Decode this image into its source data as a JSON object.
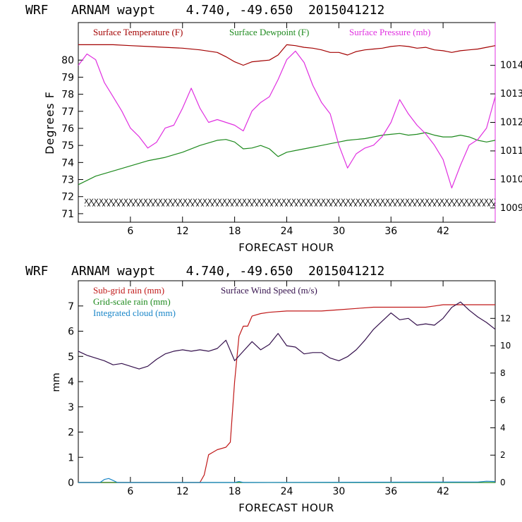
{
  "colors": {
    "temperature": "#a30000",
    "dewpoint": "#1e8a1e",
    "pressure": "#e030e0",
    "subgrid_rain": "#c01818",
    "gridscale_rain": "#1e8a1e",
    "integrated_cloud": "#1a86c8",
    "wind_speed": "#34104c",
    "axis": "#000000"
  },
  "chart_data": [
    {
      "type": "line",
      "title": "WRF   ARNAM waypt    4.740, -49.650  2015041212",
      "xlabel": "FORECAST HOUR",
      "ylabel": "Degrees F",
      "xlim": [
        0,
        48
      ],
      "ylim": [
        70.5,
        82.2
      ],
      "y2lim": [
        1008.5,
        1015.5
      ],
      "grid": false,
      "x_ticks": [
        6,
        12,
        18,
        24,
        30,
        36,
        42
      ],
      "y_ticks": [
        71,
        72,
        73,
        74,
        75,
        76,
        77,
        78,
        79,
        80
      ],
      "y2_ticks": [
        1009,
        1010,
        1011,
        1012,
        1013,
        1014
      ],
      "legend": [
        "Surface Temperature (F)",
        "Surface Dewpoint (F)",
        "Surface Pressure (mb)"
      ],
      "series": [
        {
          "name": "Surface Temperature (F)",
          "axis": "left",
          "x": [
            0,
            2,
            4,
            6,
            8,
            10,
            12,
            14,
            16,
            17,
            18,
            19,
            20,
            21,
            22,
            23,
            24,
            25,
            26,
            27,
            28,
            29,
            30,
            31,
            32,
            33,
            34,
            35,
            36,
            37,
            38,
            39,
            40,
            41,
            42,
            43,
            44,
            45,
            46,
            47,
            48
          ],
          "values": [
            80.9,
            80.9,
            80.9,
            80.85,
            80.8,
            80.75,
            80.7,
            80.6,
            80.45,
            80.2,
            79.9,
            79.7,
            79.9,
            79.95,
            80.0,
            80.3,
            80.9,
            80.85,
            80.75,
            80.7,
            80.6,
            80.45,
            80.45,
            80.3,
            80.5,
            80.6,
            80.65,
            80.7,
            80.8,
            80.85,
            80.8,
            80.7,
            80.75,
            80.6,
            80.55,
            80.45,
            80.55,
            80.6,
            80.65,
            80.75,
            80.85
          ]
        },
        {
          "name": "Surface Dewpoint (F)",
          "axis": "left",
          "x": [
            0,
            2,
            4,
            6,
            8,
            10,
            12,
            14,
            16,
            17,
            18,
            19,
            20,
            21,
            22,
            23,
            24,
            25,
            26,
            27,
            28,
            29,
            30,
            31,
            32,
            33,
            34,
            35,
            36,
            37,
            38,
            39,
            40,
            41,
            42,
            43,
            44,
            45,
            46,
            47,
            48
          ],
          "values": [
            72.7,
            73.2,
            73.5,
            73.8,
            74.1,
            74.3,
            74.6,
            75.0,
            75.3,
            75.35,
            75.2,
            74.8,
            74.85,
            75.0,
            74.8,
            74.35,
            74.6,
            74.7,
            74.8,
            74.9,
            75.0,
            75.1,
            75.2,
            75.3,
            75.35,
            75.4,
            75.5,
            75.6,
            75.65,
            75.7,
            75.6,
            75.65,
            75.75,
            75.6,
            75.5,
            75.5,
            75.6,
            75.5,
            75.3,
            75.2,
            75.3
          ]
        },
        {
          "name": "Surface Pressure (mb)",
          "axis": "right",
          "x": [
            0,
            1,
            2,
            3,
            4,
            5,
            6,
            7,
            8,
            9,
            10,
            11,
            12,
            13,
            14,
            15,
            16,
            17,
            18,
            19,
            20,
            21,
            22,
            23,
            24,
            25,
            26,
            27,
            28,
            29,
            30,
            31,
            32,
            33,
            34,
            35,
            36,
            37,
            38,
            39,
            40,
            41,
            42,
            43,
            44,
            45,
            46,
            47,
            48
          ],
          "values": [
            1014.0,
            1014.4,
            1014.2,
            1013.4,
            1012.9,
            1012.4,
            1011.8,
            1011.5,
            1011.1,
            1011.3,
            1011.8,
            1011.9,
            1012.5,
            1013.2,
            1012.5,
            1012.0,
            1012.1,
            1012.0,
            1011.9,
            1011.7,
            1012.4,
            1012.7,
            1012.9,
            1013.5,
            1014.2,
            1014.5,
            1014.1,
            1013.3,
            1012.7,
            1012.3,
            1011.2,
            1010.4,
            1010.9,
            1011.1,
            1011.2,
            1011.5,
            1012.0,
            1012.8,
            1012.3,
            1011.9,
            1011.6,
            1011.2,
            1010.7,
            1009.7,
            1010.5,
            1011.2,
            1011.4,
            1011.8,
            1012.9
          ]
        }
      ],
      "hatched_band": {
        "y_center": 71.65,
        "height": 0.45
      }
    },
    {
      "type": "line",
      "title": "WRF   ARNAM waypt    4.740, -49.650  2015041212",
      "xlabel": "FORECAST HOUR",
      "ylabel": "mm",
      "xlim": [
        0,
        48
      ],
      "ylim": [
        0,
        8.0
      ],
      "y2lim": [
        0,
        14.75
      ],
      "grid": false,
      "x_ticks": [
        6,
        12,
        18,
        24,
        30,
        36,
        42
      ],
      "y_ticks": [
        0,
        1,
        2,
        3,
        4,
        5,
        6,
        7
      ],
      "y2_ticks": [
        0,
        2,
        4,
        6,
        8,
        10,
        12
      ],
      "legend": [
        "Sub-grid rain (mm)",
        "Surface Wind Speed (m/s)",
        "Grid-scale rain (mm)",
        "Integrated cloud (mm)"
      ],
      "series": [
        {
          "name": "Sub-grid rain (mm)",
          "axis": "left",
          "x": [
            0,
            14,
            14.5,
            15,
            15.5,
            16,
            17,
            17.5,
            18,
            18.5,
            19,
            19.5,
            20,
            21,
            22,
            24,
            28,
            30,
            32,
            34,
            36,
            40,
            41,
            42,
            48
          ],
          "values": [
            0,
            0,
            0.3,
            1.1,
            1.2,
            1.3,
            1.4,
            1.6,
            4.0,
            5.8,
            6.2,
            6.2,
            6.6,
            6.7,
            6.75,
            6.8,
            6.8,
            6.85,
            6.9,
            6.95,
            6.95,
            6.95,
            7.0,
            7.05,
            7.05
          ]
        },
        {
          "name": "Surface Wind Speed (m/s)",
          "axis": "right",
          "x": [
            0,
            1,
            2,
            3,
            4,
            5,
            6,
            7,
            8,
            9,
            10,
            11,
            12,
            13,
            14,
            15,
            16,
            17,
            18,
            19,
            20,
            21,
            22,
            23,
            24,
            25,
            26,
            27,
            28,
            29,
            30,
            31,
            32,
            33,
            34,
            35,
            36,
            37,
            38,
            39,
            40,
            41,
            42,
            43,
            44,
            45,
            46,
            47,
            48
          ],
          "values": [
            9.6,
            9.3,
            9.1,
            8.9,
            8.6,
            8.7,
            8.5,
            8.3,
            8.5,
            9.0,
            9.4,
            9.6,
            9.7,
            9.6,
            9.7,
            9.6,
            9.8,
            10.4,
            8.9,
            9.6,
            10.3,
            9.7,
            10.1,
            10.9,
            10.0,
            9.9,
            9.4,
            9.5,
            9.5,
            9.1,
            8.9,
            9.2,
            9.7,
            10.4,
            11.2,
            11.8,
            12.4,
            11.9,
            12.0,
            11.5,
            11.6,
            11.5,
            12.0,
            12.8,
            13.2,
            12.6,
            12.1,
            11.7,
            11.2
          ]
        },
        {
          "name": "Grid-scale rain (mm)",
          "axis": "left",
          "x": [
            0,
            48
          ],
          "values": [
            0,
            0
          ]
        },
        {
          "name": "Integrated cloud (mm)",
          "axis": "left",
          "x": [
            0,
            2.5,
            3,
            3.5,
            4,
            4.5,
            14,
            18,
            18.5,
            19,
            46,
            47,
            48
          ],
          "values": [
            0,
            0,
            0.12,
            0.16,
            0.08,
            0,
            0,
            0,
            0.04,
            0,
            0.02,
            0.05,
            0.04
          ]
        }
      ]
    }
  ]
}
